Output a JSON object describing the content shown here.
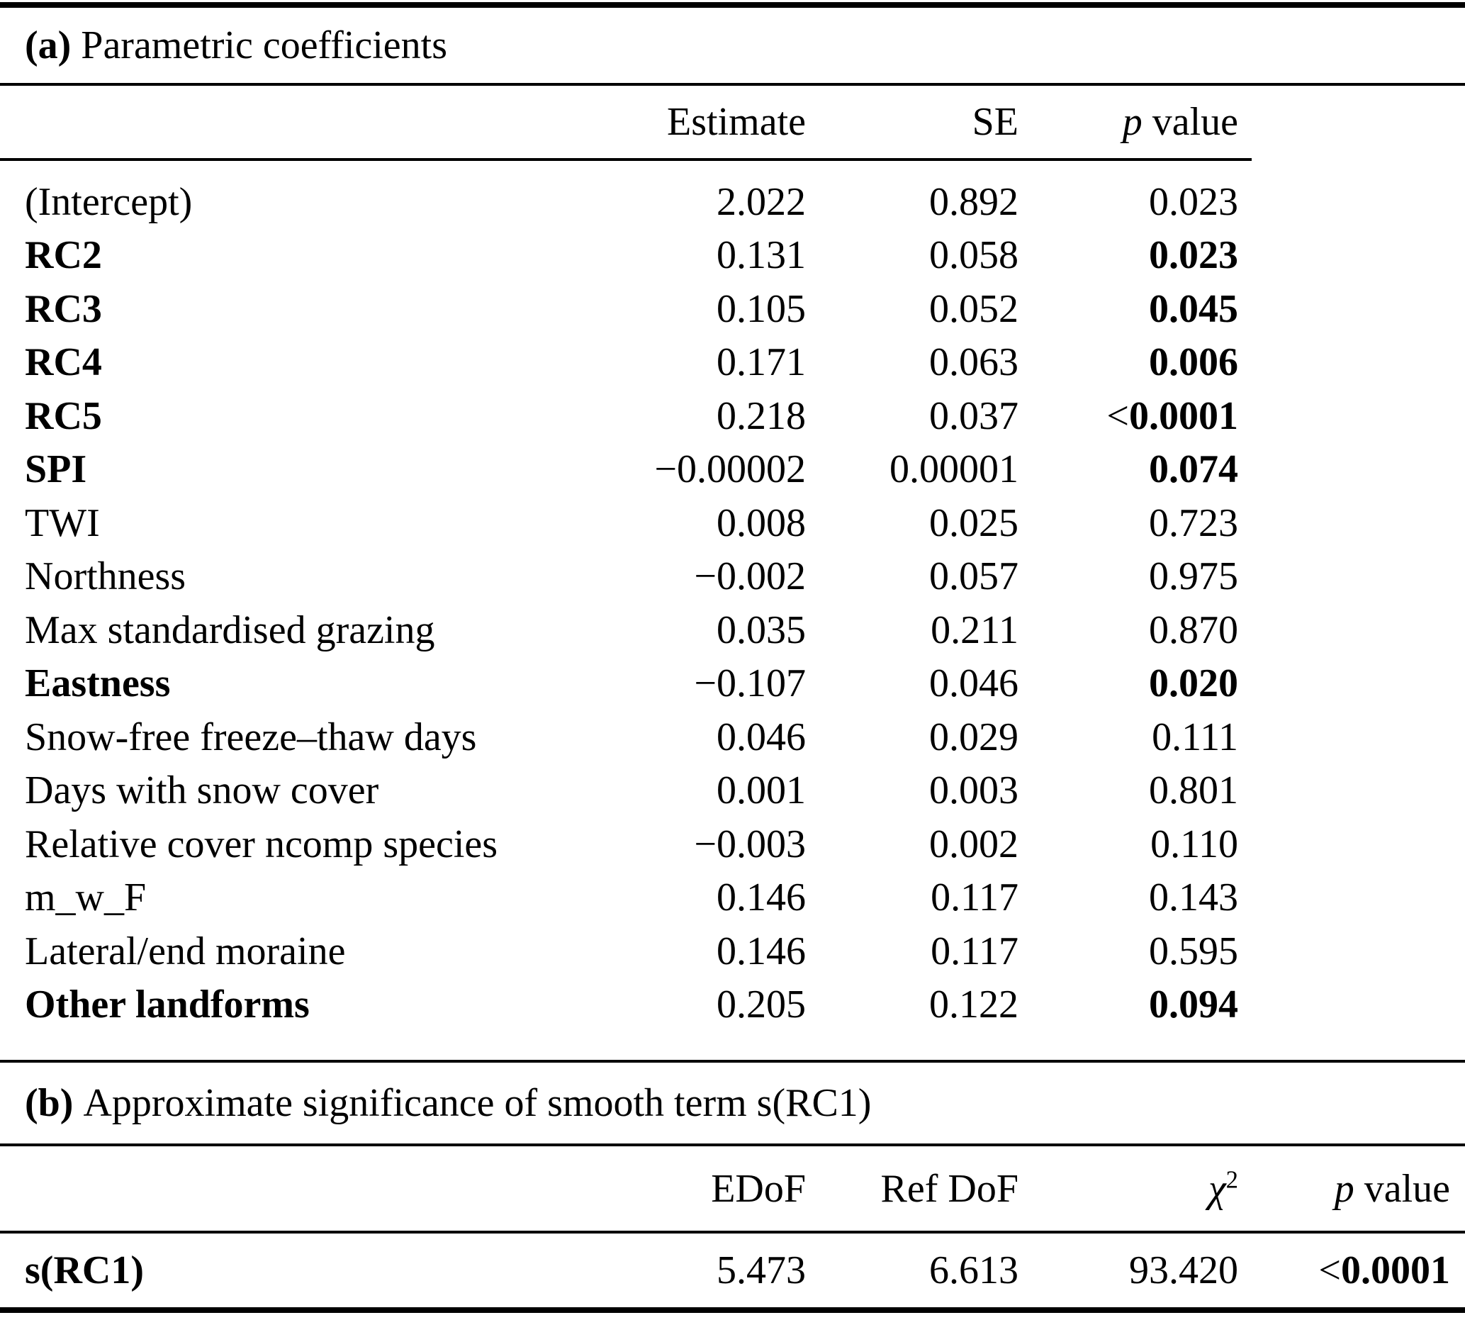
{
  "table_a": {
    "title_prefix": "(a)",
    "title": "Parametric coefficients",
    "header": {
      "estimate": "Estimate",
      "se": "SE",
      "p_italic": "p",
      "p_rest": " value"
    },
    "rows": [
      {
        "label": "(Intercept)",
        "bold_label": false,
        "estimate": "2.022",
        "se": "0.892",
        "p": "0.023",
        "bold_p": false
      },
      {
        "label": "RC2",
        "bold_label": true,
        "estimate": "0.131",
        "se": "0.058",
        "p": "0.023",
        "bold_p": true
      },
      {
        "label": "RC3",
        "bold_label": true,
        "estimate": "0.105",
        "se": "0.052",
        "p": "0.045",
        "bold_p": true
      },
      {
        "label": "RC4",
        "bold_label": true,
        "estimate": "0.171",
        "se": "0.063",
        "p": "0.006",
        "bold_p": true
      },
      {
        "label": "RC5",
        "bold_label": true,
        "estimate": "0.218",
        "se": "0.037",
        "p": "<0.0001",
        "bold_p": true
      },
      {
        "label": "SPI",
        "bold_label": true,
        "estimate": "−0.00002",
        "se": "0.00001",
        "p": "0.074",
        "bold_p": true
      },
      {
        "label": "TWI",
        "bold_label": false,
        "estimate": "0.008",
        "se": "0.025",
        "p": "0.723",
        "bold_p": false
      },
      {
        "label": "Northness",
        "bold_label": false,
        "estimate": "−0.002",
        "se": "0.057",
        "p": "0.975",
        "bold_p": false
      },
      {
        "label": "Max standardised grazing",
        "bold_label": false,
        "estimate": "0.035",
        "se": "0.211",
        "p": "0.870",
        "bold_p": false
      },
      {
        "label": "Eastness",
        "bold_label": true,
        "estimate": "−0.107",
        "se": "0.046",
        "p": "0.020",
        "bold_p": true
      },
      {
        "label": "Snow-free freeze–thaw days",
        "bold_label": false,
        "estimate": "0.046",
        "se": "0.029",
        "p": "0.111",
        "bold_p": false
      },
      {
        "label": "Days with snow cover",
        "bold_label": false,
        "estimate": "0.001",
        "se": "0.003",
        "p": "0.801",
        "bold_p": false
      },
      {
        "label": "Relative cover ncomp species",
        "bold_label": false,
        "estimate": "−0.003",
        "se": "0.002",
        "p": "0.110",
        "bold_p": false
      },
      {
        "label": "m_w_F",
        "bold_label": false,
        "estimate": "0.146",
        "se": "0.117",
        "p": "0.143",
        "bold_p": false
      },
      {
        "label": "Lateral/end moraine",
        "bold_label": false,
        "estimate": "0.146",
        "se": "0.117",
        "p": "0.595",
        "bold_p": false
      },
      {
        "label": "Other landforms",
        "bold_label": true,
        "estimate": "0.205",
        "se": "0.122",
        "p": "0.094",
        "bold_p": true
      }
    ]
  },
  "table_b": {
    "title_prefix": "(b)",
    "title": "Approximate significance of smooth term s(RC1)",
    "header": {
      "edof": "EDoF",
      "refdof": "Ref DoF",
      "chi_base": "χ",
      "chi_sup": "2",
      "p_italic": "p",
      "p_rest": " value"
    },
    "rows": [
      {
        "label": "s(RC1)",
        "bold_label": true,
        "edof": "5.473",
        "refdof": "6.613",
        "chi2": "93.420",
        "p": "<0.0001",
        "bold_p": true
      }
    ]
  },
  "colors": {
    "text": "#000000",
    "background": "#ffffff",
    "rule": "#000000"
  }
}
